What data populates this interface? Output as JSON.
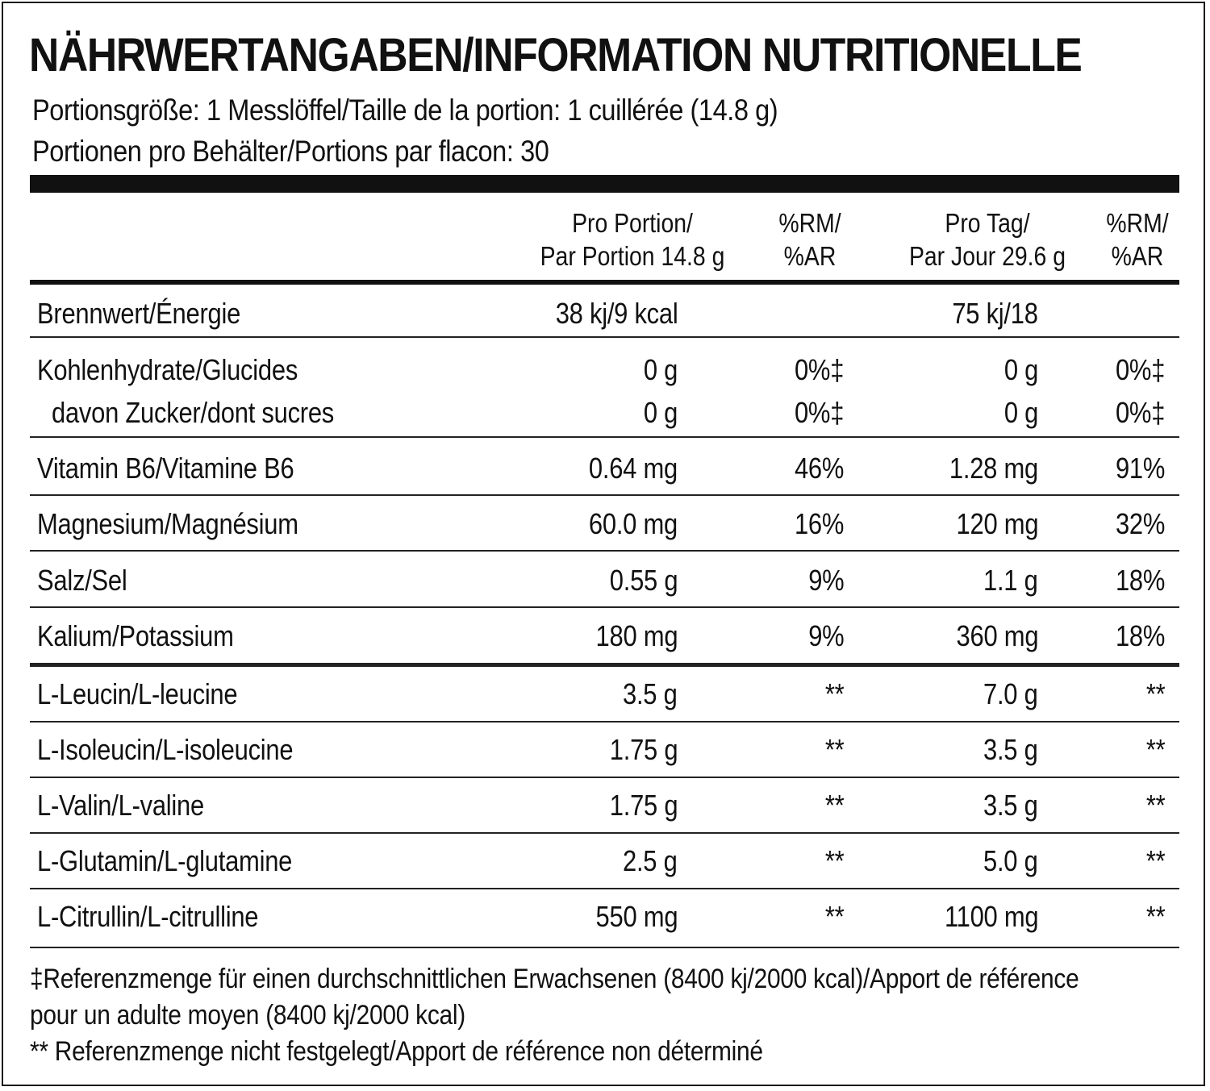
{
  "title": "NÄHRWERTANGABEN/INFORMATION NUTRITIONELLE",
  "serving_size": "Portionsgröße: 1 Messlöffel/Taille de la portion: 1 cuillérée (14.8 g)",
  "servings_per_container": "Portionen pro Behälter/Portions par flacon: 30",
  "headers": {
    "per_portion_line1": "Pro Portion/",
    "per_portion_line2": "Par Portion 14.8 g",
    "rm1_line1": "%RM/",
    "rm1_line2": "%AR",
    "per_day_line1": "Pro Tag/",
    "per_day_line2": "Par Jour  29.6 g",
    "rm2_line1": "%RM/",
    "rm2_line2": "%AR"
  },
  "rows": [
    {
      "label": "Brennwert/Énergie",
      "per_portion": "38 kj/9 kcal",
      "rm1": "",
      "per_day": "75 kj/18",
      "rm2": ""
    },
    {
      "label": "Kohlenhydrate/Glucides",
      "per_portion": "0 g",
      "rm1": "0%‡",
      "per_day": "0 g",
      "rm2": "0%‡"
    },
    {
      "label": "davon Zucker/dont sucres",
      "per_portion": "0 g",
      "rm1": "0%‡",
      "per_day": "0 g",
      "rm2": "0%‡"
    },
    {
      "label": "Vitamin B6/Vitamine B6",
      "per_portion": "0.64 mg",
      "rm1": "46%",
      "per_day": "1.28 mg",
      "rm2": "91%"
    },
    {
      "label": "Magnesium/Magnésium",
      "per_portion": "60.0 mg",
      "rm1": "16%",
      "per_day": "120 mg",
      "rm2": "32%"
    },
    {
      "label": "Salz/Sel",
      "per_portion": "0.55 g",
      "rm1": "9%",
      "per_day": "1.1 g",
      "rm2": "18%"
    },
    {
      "label": "Kalium/Potassium",
      "per_portion": "180 mg",
      "rm1": "9%",
      "per_day": "360 mg",
      "rm2": "18%"
    },
    {
      "label": "L-Leucin/L-leucine",
      "per_portion": "3.5 g",
      "rm1": "**",
      "per_day": "7.0 g",
      "rm2": "**"
    },
    {
      "label": "L-Isoleucin/L-isoleucine",
      "per_portion": "1.75 g",
      "rm1": "**",
      "per_day": "3.5 g",
      "rm2": "**"
    },
    {
      "label": "L-Valin/L-valine",
      "per_portion": "1.75 g",
      "rm1": "**",
      "per_day": "3.5 g",
      "rm2": "**"
    },
    {
      "label": "L-Glutamin/L-glutamine",
      "per_portion": "2.5 g",
      "rm1": "**",
      "per_day": "5.0 g",
      "rm2": "**"
    },
    {
      "label": "L-Citrullin/L-citrulline",
      "per_portion": "550 mg",
      "rm1": "**",
      "per_day": "1100 mg",
      "rm2": "**"
    }
  ],
  "footnotes": {
    "reference_line1": "‡Referenzmenge für einen durchschnittlichen Erwachsenen (8400 kj/2000 kcal)/Apport de référence",
    "reference_line2": "pour un adulte moyen (8400 kj/2000 kcal)",
    "not_established": "** Referenzmenge nicht festgelegt/Apport de référence non déterminé"
  }
}
